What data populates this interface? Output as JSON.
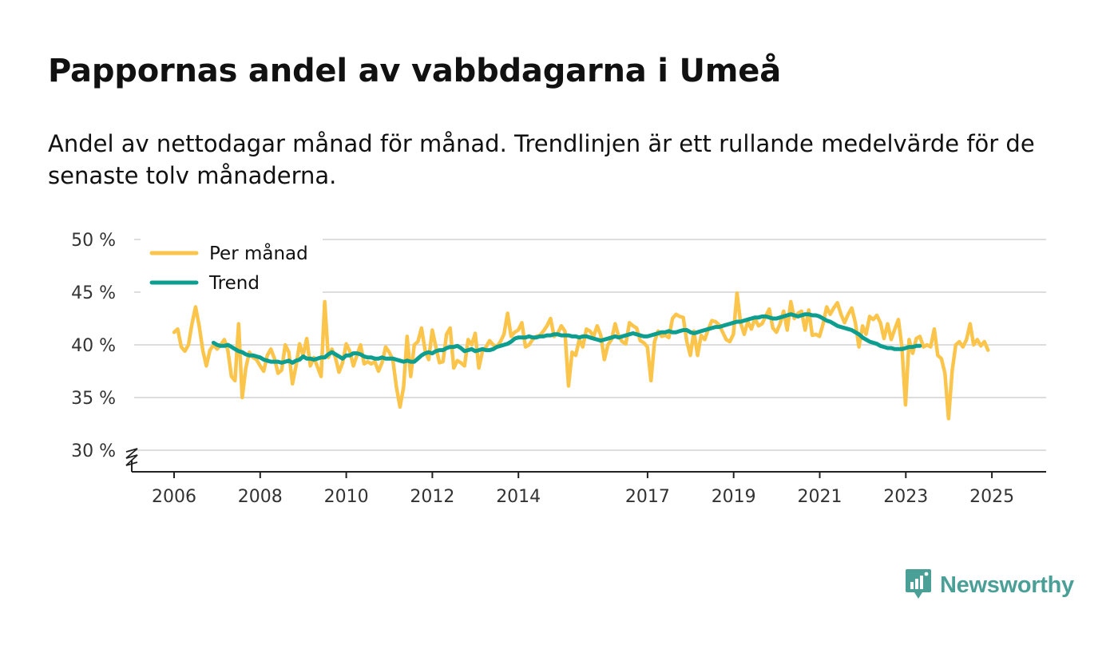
{
  "title": "Pappornas andel av vabbdagarna i Umeå",
  "subtitle": "Andel av nettodagar månad för månad. Trendlinjen är ett rullande medelvärde för de senaste tolv månaderna.",
  "brand": {
    "name": "Newsworthy",
    "icon": "newsworthy-logo-icon",
    "color": "#4a9f97"
  },
  "colors": {
    "monthly": "#fbc44b",
    "trend": "#0e9e90",
    "grid": "#dddddd",
    "axis": "#222222"
  },
  "chart_data": {
    "type": "line",
    "title": "Pappornas andel av vabbdagarna i Umeå",
    "xlabel": "",
    "ylabel": "",
    "ylim": [
      30,
      50
    ],
    "xlim": [
      2005.5,
      2026.3
    ],
    "y_ticks": [
      30,
      35,
      40,
      45,
      50
    ],
    "y_tick_labels": [
      "30 %",
      "35 %",
      "40 %",
      "45 %",
      "50 %"
    ],
    "x_ticks": [
      2006,
      2008,
      2010,
      2012,
      2014,
      2017,
      2019,
      2021,
      2023,
      2025
    ],
    "x_tick_labels": [
      "2006",
      "2008",
      "2010",
      "2012",
      "2014",
      "2017",
      "2019",
      "2021",
      "2023",
      "2025"
    ],
    "grid": true,
    "legend": "top-left",
    "axis_break": true,
    "series": [
      {
        "name": "Per månad",
        "start": 2006.0,
        "step": 0.0833,
        "values": [
          41.2,
          41.5,
          39.8,
          39.4,
          40.0,
          42.0,
          43.6,
          41.8,
          39.5,
          38.0,
          39.5,
          40.0,
          39.6,
          40.0,
          40.5,
          39.5,
          37.0,
          36.6,
          42.0,
          35.0,
          37.8,
          39.3,
          38.8,
          38.6,
          38.0,
          37.5,
          39.0,
          39.6,
          38.7,
          37.3,
          37.6,
          40.0,
          39.3,
          36.3,
          38.0,
          40.1,
          39.0,
          40.6,
          38.0,
          38.8,
          37.9,
          37.0,
          44.1,
          38.8,
          39.6,
          38.8,
          37.4,
          38.3,
          40.1,
          39.4,
          38.0,
          39.0,
          40.0,
          38.2,
          38.4,
          38.2,
          38.4,
          37.5,
          38.3,
          39.8,
          39.3,
          38.6,
          36.0,
          34.1,
          36.0,
          40.8,
          37.0,
          40.0,
          40.3,
          41.6,
          39.5,
          38.6,
          41.4,
          39.8,
          38.3,
          38.4,
          41.0,
          41.6,
          37.8,
          38.5,
          38.3,
          38.0,
          40.5,
          40.0,
          41.1,
          37.8,
          39.4,
          39.8,
          40.4,
          40.0,
          39.8,
          40.3,
          41.0,
          43.0,
          40.8,
          41.2,
          41.4,
          42.1,
          39.8,
          40.0,
          40.5,
          40.8,
          40.9,
          41.3,
          41.8,
          42.5,
          40.8,
          41.1,
          41.8,
          41.3,
          36.1,
          39.3,
          39.0,
          40.5,
          39.8,
          41.5,
          41.3,
          40.8,
          41.8,
          40.9,
          38.6,
          40.0,
          40.5,
          42.0,
          40.8,
          40.3,
          40.1,
          42.1,
          41.8,
          41.6,
          40.4,
          40.2,
          39.8,
          36.6,
          40.3,
          41.3,
          40.8,
          40.9,
          40.7,
          42.5,
          42.9,
          42.7,
          42.6,
          40.3,
          39.0,
          41.3,
          39.0,
          40.9,
          40.5,
          41.5,
          42.3,
          42.2,
          41.9,
          41.2,
          40.5,
          40.3,
          41.0,
          44.9,
          42.1,
          41.0,
          42.2,
          41.5,
          42.5,
          41.8,
          42.0,
          42.7,
          43.4,
          41.6,
          41.2,
          42.0,
          43.2,
          41.4,
          44.1,
          42.5,
          43.0,
          43.2,
          41.4,
          43.3,
          40.9,
          41.0,
          40.8,
          42.0,
          43.6,
          42.9,
          43.5,
          44.0,
          42.9,
          42.1,
          42.9,
          43.5,
          42.1,
          39.8,
          41.8,
          41.0,
          42.7,
          42.4,
          42.8,
          42.1,
          40.6,
          42.0,
          40.5,
          41.5,
          42.4,
          39.8,
          34.3,
          40.5,
          39.2,
          40.6,
          40.8,
          39.8,
          40.0,
          39.8,
          41.5,
          39.0,
          38.7,
          37.3,
          33.0,
          37.5,
          40.0,
          40.3,
          39.8,
          40.5,
          42.0,
          40.0,
          40.5,
          39.9,
          40.3,
          39.5
        ]
      },
      {
        "name": "Trend",
        "start": 2006.9167,
        "step": 0.0833,
        "values": [
          40.2,
          40.0,
          39.9,
          39.9,
          40.0,
          39.8,
          39.6,
          39.4,
          39.3,
          39.1,
          39.0,
          39.0,
          38.9,
          38.8,
          38.6,
          38.5,
          38.4,
          38.4,
          38.4,
          38.3,
          38.4,
          38.5,
          38.3,
          38.5,
          38.6,
          38.9,
          38.7,
          38.7,
          38.6,
          38.7,
          38.8,
          38.8,
          39.1,
          39.3,
          39.1,
          38.9,
          38.7,
          39.0,
          39.0,
          39.2,
          39.2,
          39.1,
          38.9,
          38.8,
          38.8,
          38.7,
          38.7,
          38.8,
          38.7,
          38.7,
          38.7,
          38.6,
          38.5,
          38.4,
          38.5,
          38.4,
          38.4,
          38.7,
          39.0,
          39.2,
          39.3,
          39.2,
          39.4,
          39.5,
          39.5,
          39.7,
          39.8,
          39.8,
          39.9,
          39.7,
          39.4,
          39.5,
          39.6,
          39.4,
          39.5,
          39.6,
          39.5,
          39.5,
          39.6,
          39.8,
          39.9,
          40.0,
          40.1,
          40.3,
          40.6,
          40.7,
          40.7,
          40.7,
          40.8,
          40.7,
          40.7,
          40.8,
          40.8,
          40.9,
          40.9,
          41.0,
          41.0,
          40.9,
          40.9,
          40.9,
          40.8,
          40.8,
          40.7,
          40.8,
          40.8,
          40.7,
          40.6,
          40.5,
          40.4,
          40.5,
          40.6,
          40.7,
          40.8,
          40.7,
          40.8,
          40.9,
          41.0,
          41.1,
          41.0,
          40.9,
          40.8,
          40.8,
          40.9,
          41.0,
          41.1,
          41.2,
          41.2,
          41.3,
          41.2,
          41.2,
          41.3,
          41.4,
          41.4,
          41.2,
          41.1,
          41.2,
          41.3,
          41.4,
          41.5,
          41.6,
          41.7,
          41.7,
          41.8,
          41.9,
          42.0,
          42.1,
          42.2,
          42.2,
          42.3,
          42.4,
          42.5,
          42.6,
          42.6,
          42.7,
          42.7,
          42.6,
          42.5,
          42.5,
          42.6,
          42.7,
          42.8,
          42.9,
          42.8,
          42.7,
          42.8,
          42.9,
          42.9,
          42.8,
          42.8,
          42.7,
          42.5,
          42.3,
          42.2,
          42.0,
          41.8,
          41.7,
          41.6,
          41.5,
          41.4,
          41.2,
          41.0,
          40.7,
          40.5,
          40.3,
          40.2,
          40.1,
          39.9,
          39.8,
          39.7,
          39.7,
          39.6,
          39.6,
          39.6,
          39.7,
          39.8,
          39.8,
          39.9,
          39.9
        ]
      }
    ]
  }
}
